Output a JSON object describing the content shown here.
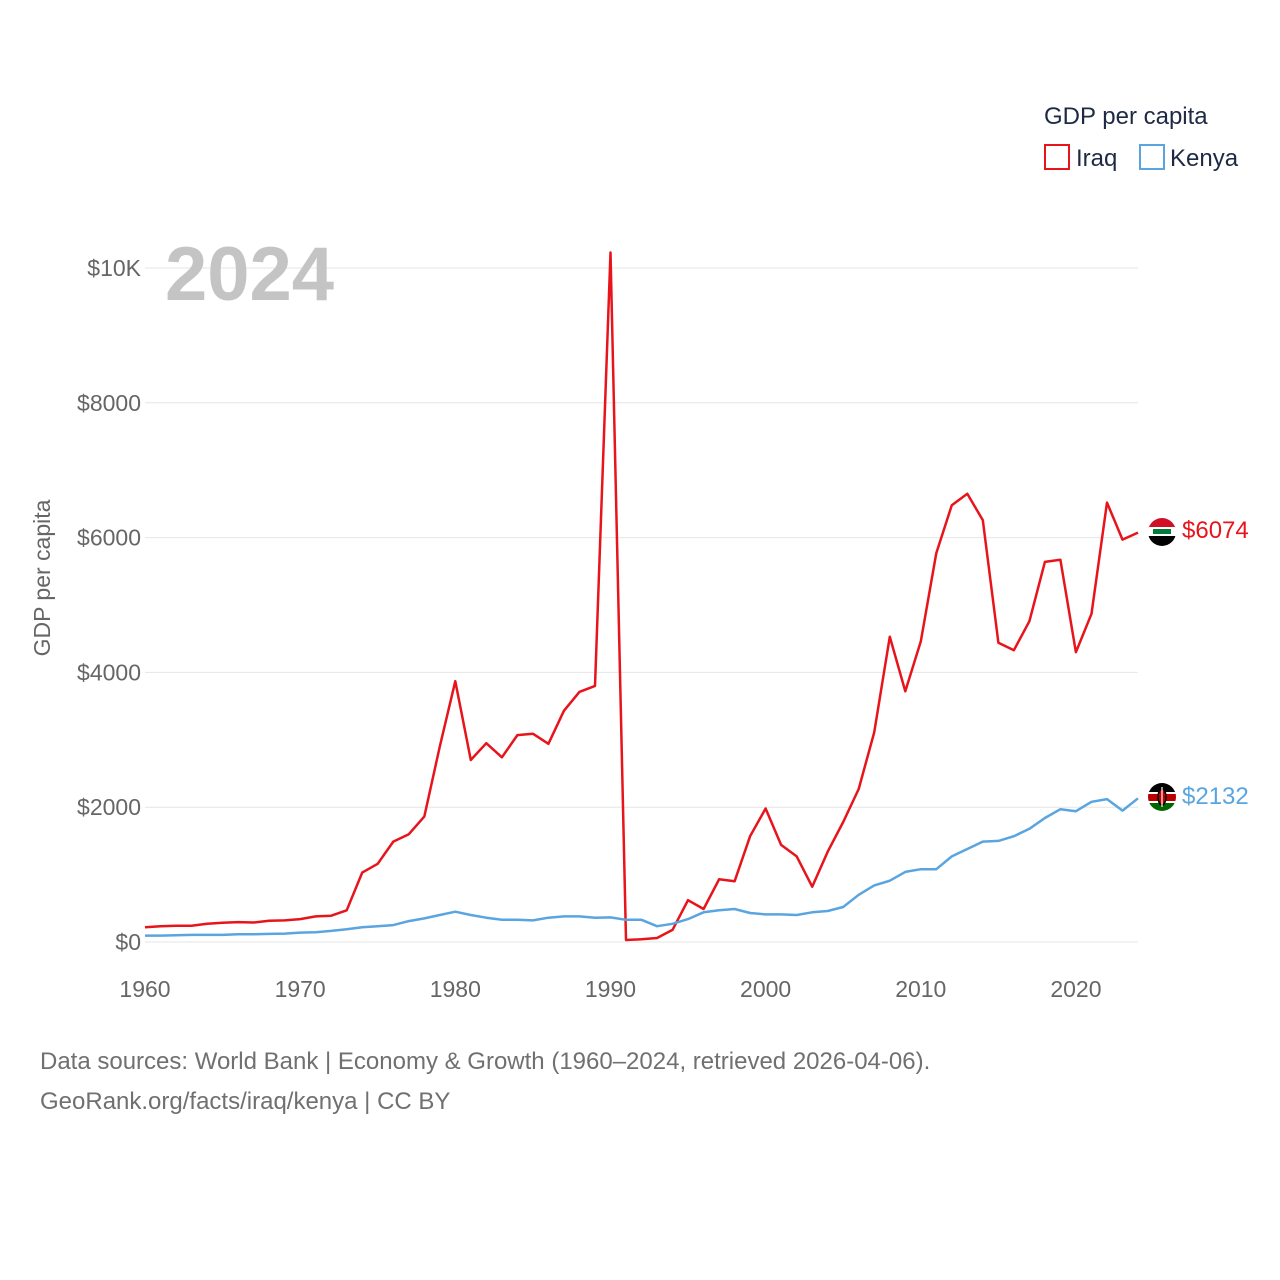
{
  "colors": {
    "iraq": "#e8141b",
    "kenya": "#5aa5e0",
    "grid": "#e6e6e6",
    "tick": "#666666"
  },
  "legend": {
    "title": "GDP per capita",
    "items": [
      {
        "label": "Iraq",
        "color": "#e8141b"
      },
      {
        "label": "Kenya",
        "color": "#5aa5e0"
      }
    ]
  },
  "year_label": "2024",
  "end_labels": {
    "iraq": "$6074",
    "kenya": "$2132"
  },
  "source": {
    "line1": "Data sources: World Bank | Economy & Growth (1960–2024, retrieved 2026-04-06).",
    "line2": "GeoRank.org/facts/iraq/kenya | CC BY"
  },
  "chart_data": {
    "type": "line",
    "title": "",
    "xlabel": "",
    "ylabel": "GDP per capita",
    "xlim": [
      1960,
      2024
    ],
    "ylim": [
      0,
      10000
    ],
    "x_ticks": [
      1960,
      1970,
      1980,
      1990,
      2000,
      2010,
      2020
    ],
    "y_ticks": [
      {
        "value": 0,
        "label": "$0"
      },
      {
        "value": 2000,
        "label": "$2000"
      },
      {
        "value": 4000,
        "label": "$4000"
      },
      {
        "value": 6000,
        "label": "$6000"
      },
      {
        "value": 8000,
        "label": "$8000"
      },
      {
        "value": 10000,
        "label": "$10K"
      }
    ],
    "x": [
      1960,
      1961,
      1962,
      1963,
      1964,
      1965,
      1966,
      1967,
      1968,
      1969,
      1970,
      1971,
      1972,
      1973,
      1974,
      1975,
      1976,
      1977,
      1978,
      1979,
      1980,
      1981,
      1982,
      1983,
      1984,
      1985,
      1986,
      1987,
      1988,
      1989,
      1990,
      1991,
      1992,
      1993,
      1994,
      1995,
      1996,
      1997,
      1998,
      1999,
      2000,
      2001,
      2002,
      2003,
      2004,
      2005,
      2006,
      2007,
      2008,
      2009,
      2010,
      2011,
      2012,
      2013,
      2014,
      2015,
      2016,
      2017,
      2018,
      2019,
      2020,
      2021,
      2022,
      2023,
      2024
    ],
    "series": [
      {
        "name": "Iraq",
        "color": "#e8141b",
        "values": [
          220,
          235,
          240,
          240,
          270,
          285,
          295,
          290,
          315,
          320,
          340,
          380,
          390,
          470,
          1030,
          1160,
          1490,
          1600,
          1860,
          2900,
          3870,
          2700,
          2950,
          2740,
          3070,
          3090,
          2940,
          3430,
          3710,
          3800,
          10230,
          30,
          40,
          60,
          180,
          620,
          490,
          930,
          900,
          1570,
          1980,
          1440,
          1270,
          820,
          1340,
          1780,
          2270,
          3110,
          4530,
          3720,
          4460,
          5770,
          6480,
          6650,
          6260,
          4440,
          4330,
          4760,
          5640,
          5670,
          4300,
          4870,
          6520,
          5970,
          6074
        ]
      },
      {
        "name": "Kenya",
        "color": "#5aa5e0",
        "values": [
          95,
          95,
          100,
          105,
          105,
          105,
          115,
          115,
          120,
          125,
          140,
          145,
          165,
          190,
          220,
          235,
          250,
          310,
          350,
          400,
          450,
          400,
          360,
          330,
          330,
          320,
          360,
          380,
          380,
          360,
          365,
          330,
          330,
          235,
          270,
          340,
          440,
          470,
          490,
          430,
          410,
          410,
          400,
          440,
          460,
          520,
          700,
          840,
          910,
          1040,
          1080,
          1080,
          1270,
          1380,
          1490,
          1500,
          1570,
          1680,
          1840,
          1970,
          1940,
          2080,
          2120,
          1950,
          2132
        ]
      }
    ]
  }
}
